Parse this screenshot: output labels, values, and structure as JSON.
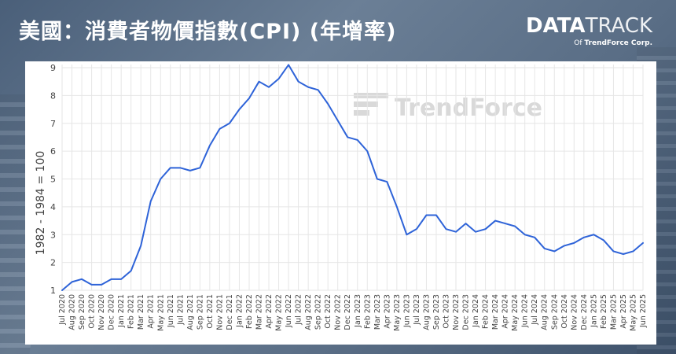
{
  "header": {
    "title": "美國：消費者物價指數(CPI) (年增率)"
  },
  "logo": {
    "brand_bold": "DATA",
    "brand_light": "TRACK",
    "sub_prefix": "Of ",
    "sub_brand": "TrendForce Corp."
  },
  "watermark": {
    "text": "TrendForce"
  },
  "colors": {
    "line": "#2e63d8",
    "grid": "#e6e6e6",
    "panel": "#ffffff"
  },
  "chart_data": {
    "type": "line",
    "title": "美國：消費者物價指數(CPI) (年增率)",
    "ylabel": "1982 - 1984 = 100",
    "xlabel": "",
    "ylim": [
      1,
      9
    ],
    "yticks": [
      1,
      2,
      3,
      4,
      5,
      6,
      7,
      8,
      9
    ],
    "grid": true,
    "legend": "none",
    "categories": [
      "Jul 2020",
      "Aug 2020",
      "Sep 2020",
      "Oct 2020",
      "Nov 2020",
      "Dec 2020",
      "Jan 2021",
      "Feb 2021",
      "Mar 2021",
      "Apr 2021",
      "May 2021",
      "Jun 2021",
      "Jul 2021",
      "Aug 2021",
      "Sep 2021",
      "Oct 2021",
      "Nov 2021",
      "Dec 2021",
      "Jan 2022",
      "Feb 2022",
      "Mar 2022",
      "Apr 2022",
      "May 2022",
      "Jun 2022",
      "Jul 2022",
      "Aug 2022",
      "Sep 2022",
      "Oct 2022",
      "Nov 2022",
      "Dec 2022",
      "Jan 2023",
      "Feb 2023",
      "Mar 2023",
      "Apr 2023",
      "May 2023",
      "Jun 2023",
      "Jul 2023",
      "Aug 2023",
      "Sep 2023",
      "Oct 2023",
      "Nov 2023",
      "Dec 2023",
      "Jan 2024",
      "Feb 2024",
      "Mar 2024",
      "Apr 2024",
      "May 2024",
      "Jun 2024",
      "Jul 2024",
      "Aug 2024",
      "Sep 2024",
      "Oct 2024",
      "Nov 2024",
      "Dec 2024",
      "Jan 2025",
      "Feb 2025",
      "Mar 2025",
      "Apr 2025",
      "May 2025",
      "Jun 2025"
    ],
    "values": [
      1.0,
      1.3,
      1.4,
      1.2,
      1.2,
      1.4,
      1.4,
      1.7,
      2.6,
      4.2,
      5.0,
      5.4,
      5.4,
      5.3,
      5.4,
      6.2,
      6.8,
      7.0,
      7.5,
      7.9,
      8.5,
      8.3,
      8.6,
      9.1,
      8.5,
      8.3,
      8.2,
      7.7,
      7.1,
      6.5,
      6.4,
      6.0,
      5.0,
      4.9,
      4.0,
      3.0,
      3.2,
      3.7,
      3.7,
      3.2,
      3.1,
      3.4,
      3.1,
      3.2,
      3.5,
      3.4,
      3.3,
      3.0,
      2.9,
      2.5,
      2.4,
      2.6,
      2.7,
      2.9,
      3.0,
      2.8,
      2.4,
      2.3,
      2.4,
      2.7
    ]
  }
}
